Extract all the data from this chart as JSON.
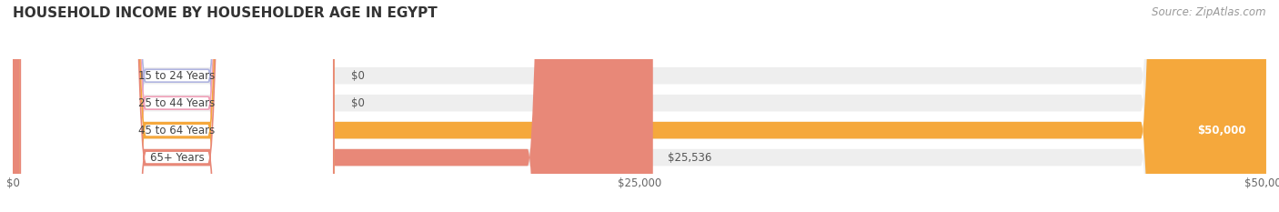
{
  "title": "HOUSEHOLD INCOME BY HOUSEHOLDER AGE IN EGYPT",
  "source": "Source: ZipAtlas.com",
  "categories": [
    "15 to 24 Years",
    "25 to 44 Years",
    "45 to 64 Years",
    "65+ Years"
  ],
  "values": [
    0,
    0,
    50000,
    25536
  ],
  "bar_colors": [
    "#b0b4e0",
    "#f0a0b8",
    "#f5a83c",
    "#e88878"
  ],
  "bar_bg_color": "#eeeeee",
  "xlim": [
    0,
    50000
  ],
  "xticks": [
    0,
    25000,
    50000
  ],
  "xtick_labels": [
    "$0",
    "$25,000",
    "$50,000"
  ],
  "value_labels": [
    "$0",
    "$0",
    "$50,000",
    "$25,536"
  ],
  "title_fontsize": 11,
  "source_fontsize": 8.5,
  "bar_height": 0.62,
  "background_color": "#ffffff"
}
